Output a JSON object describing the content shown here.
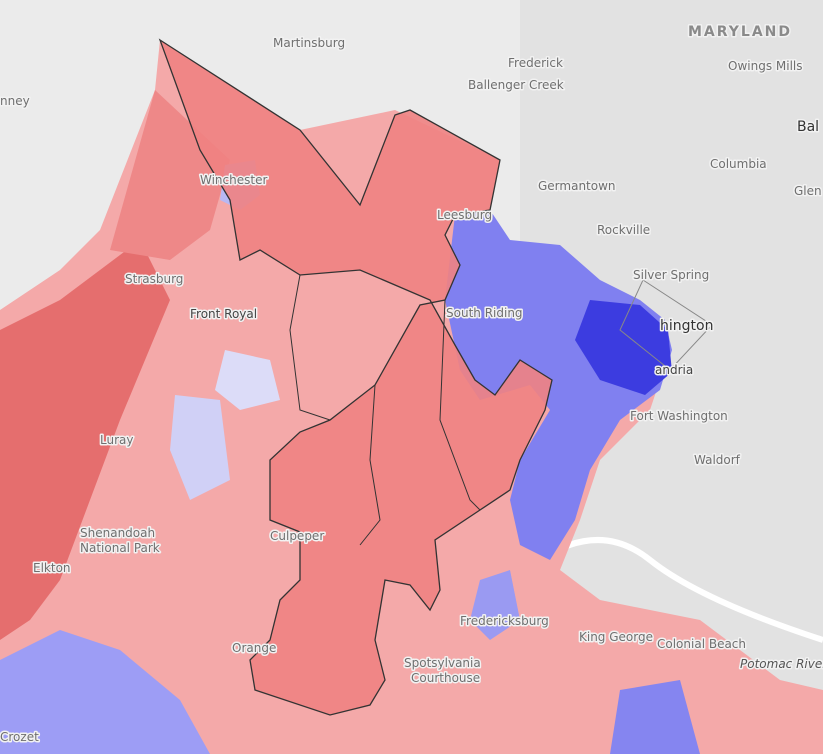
{
  "places": [
    "MARYLAND",
    "Martinsburg",
    "Frederick",
    "Ballenger Creek",
    "Owings Mills",
    "Bal",
    "nney",
    "Germantown",
    "Rockville",
    "Columbia",
    "Glen",
    "Silver Spring",
    "hington",
    "andria",
    "Fort Washington",
    "Waldorf",
    "Winchester",
    "Strasburg",
    "Front Royal",
    "Leesburg",
    "South Riding",
    "Luray",
    "Shenandoah",
    "National Park",
    "Elkton",
    "Culpeper",
    "Orange",
    "Fredericksburg",
    "King George",
    "Colonial Beach",
    "Potomac River",
    "Spotsylvania",
    "Courthouse",
    "Crozet"
  ]
}
